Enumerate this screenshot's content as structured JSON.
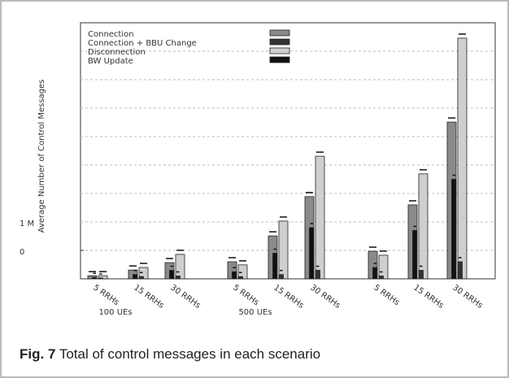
{
  "chart_data": {
    "type": "bar",
    "y_label": "Average Number of Control Messages",
    "categories": [
      "5 RRHs",
      "15 RRHs",
      "30 RRHs",
      "5 RRHs",
      "15 RRHs",
      "30 RRHs",
      "5 RRHs",
      "15 RRHs",
      "30 RRHs"
    ],
    "groups": [
      "100 UEs",
      "500 UEs",
      null
    ],
    "series": [
      {
        "name": "Connection",
        "color": "#8a8a8a",
        "values": [
          110000,
          310000,
          570000,
          600000,
          1510000,
          2890000,
          970000,
          2600000,
          5510000
        ]
      },
      {
        "name": "Connection + BBU Change",
        "color": "#333333",
        "values": [
          30000,
          80000,
          100000,
          80000,
          150000,
          300000,
          100000,
          300000,
          600000
        ]
      },
      {
        "name": "Disconnection",
        "color": "#cfcfcf",
        "values": [
          110000,
          400000,
          860000,
          490000,
          2030000,
          4310000,
          830000,
          3690000,
          8460000
        ]
      },
      {
        "name": "BW Update",
        "color": "#111111",
        "values": [
          50000,
          150000,
          300000,
          250000,
          900000,
          1800000,
          400000,
          1700000,
          3500000
        ]
      }
    ],
    "ylim": [
      0,
      9000000
    ],
    "yticks": [
      {
        "value": 0,
        "label": "0"
      },
      {
        "value": 1000000,
        "label": "1 M"
      }
    ],
    "ygrid": [
      1000000,
      2000000,
      3000000,
      4000000,
      5000000,
      6000000,
      7000000,
      8000000
    ],
    "caption_label": "Fig. 7",
    "caption_text": "Total of control messages in each scenario"
  }
}
